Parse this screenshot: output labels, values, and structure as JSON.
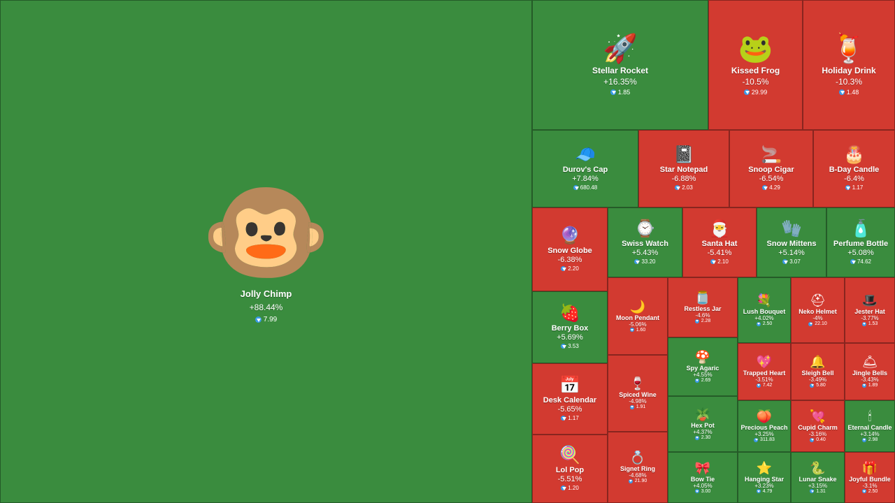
{
  "colors": {
    "gain": "#3a8c3e",
    "loss": "#d23a30",
    "currency": "#3a9ae8"
  },
  "currency_icon": "ton-diamond-icon",
  "items": [
    {
      "name": "Jolly Chimp",
      "change": "+88.44%",
      "price": "7.99",
      "icon": "🐵",
      "trend": "up"
    },
    {
      "name": "Stellar Rocket",
      "change": "+16.35%",
      "price": "1.85",
      "icon": "🚀",
      "trend": "up"
    },
    {
      "name": "Kissed Frog",
      "change": "-10.5%",
      "price": "29.99",
      "icon": "🐸",
      "trend": "down"
    },
    {
      "name": "Holiday Drink",
      "change": "-10.3%",
      "price": "1.48",
      "icon": "🍹",
      "trend": "down"
    },
    {
      "name": "Durov's Cap",
      "change": "+7.84%",
      "price": "680.48",
      "icon": "🧢",
      "trend": "up"
    },
    {
      "name": "Star Notepad",
      "change": "-6.88%",
      "price": "2.03",
      "icon": "📓",
      "trend": "down"
    },
    {
      "name": "Snoop Cigar",
      "change": "-6.54%",
      "price": "4.29",
      "icon": "🚬",
      "trend": "down"
    },
    {
      "name": "B-Day Candle",
      "change": "-6.4%",
      "price": "1.17",
      "icon": "🎂",
      "trend": "down"
    },
    {
      "name": "Snow Globe",
      "change": "-6.38%",
      "price": "2.20",
      "icon": "🔮",
      "trend": "down"
    },
    {
      "name": "Swiss Watch",
      "change": "+5.43%",
      "price": "33.20",
      "icon": "⌚",
      "trend": "up"
    },
    {
      "name": "Santa Hat",
      "change": "-5.41%",
      "price": "2.10",
      "icon": "🎅",
      "trend": "down"
    },
    {
      "name": "Snow Mittens",
      "change": "+5.14%",
      "price": "3.07",
      "icon": "🧤",
      "trend": "up"
    },
    {
      "name": "Perfume Bottle",
      "change": "+5.08%",
      "price": "74.62",
      "icon": "🧴",
      "trend": "up"
    },
    {
      "name": "Berry Box",
      "change": "+5.69%",
      "price": "3.53",
      "icon": "🍓",
      "trend": "up"
    },
    {
      "name": "Moon Pendant",
      "change": "-5.06%",
      "price": "1.60",
      "icon": "🌙",
      "trend": "down"
    },
    {
      "name": "Restless Jar",
      "change": "-4.6%",
      "price": "2.28",
      "icon": "🫙",
      "trend": "down"
    },
    {
      "name": "Lush Bouquet",
      "change": "+4.02%",
      "price": "2.50",
      "icon": "💐",
      "trend": "up"
    },
    {
      "name": "Neko Helmet",
      "change": "-4%",
      "price": "22.10",
      "icon": "⛑",
      "trend": "down"
    },
    {
      "name": "Jester Hat",
      "change": "-3.77%",
      "price": "1.53",
      "icon": "🎩",
      "trend": "down"
    },
    {
      "name": "Spy Agaric",
      "change": "+4.55%",
      "price": "2.69",
      "icon": "🍄",
      "trend": "up"
    },
    {
      "name": "Trapped Heart",
      "change": "-3.51%",
      "price": "7.42",
      "icon": "💖",
      "trend": "down"
    },
    {
      "name": "Sleigh Bell",
      "change": "-3.49%",
      "price": "5.80",
      "icon": "🔔",
      "trend": "down"
    },
    {
      "name": "Jingle Bells",
      "change": "-3.43%",
      "price": "1.89",
      "icon": "🛎",
      "trend": "down"
    },
    {
      "name": "Desk Calendar",
      "change": "-5.65%",
      "price": "1.17",
      "icon": "📅",
      "trend": "down"
    },
    {
      "name": "Spiced Wine",
      "change": "-4.98%",
      "price": "1.91",
      "icon": "🍷",
      "trend": "down"
    },
    {
      "name": "Hex Pot",
      "change": "+4.37%",
      "price": "2.30",
      "icon": "🪴",
      "trend": "up"
    },
    {
      "name": "Precious Peach",
      "change": "+3.25%",
      "price": "311.83",
      "icon": "🍑",
      "trend": "up"
    },
    {
      "name": "Cupid Charm",
      "change": "-3.16%",
      "price": "0.40",
      "icon": "💘",
      "trend": "down"
    },
    {
      "name": "Eternal Candle",
      "change": "+3.14%",
      "price": "2.98",
      "icon": "🕯",
      "trend": "up"
    },
    {
      "name": "Lol Pop",
      "change": "-5.51%",
      "price": "1.20",
      "icon": "🍭",
      "trend": "down"
    },
    {
      "name": "Signet Ring",
      "change": "-4.68%",
      "price": "21.90",
      "icon": "💍",
      "trend": "down"
    },
    {
      "name": "Bow Tie",
      "change": "+4.05%",
      "price": "3.00",
      "icon": "🎀",
      "trend": "up"
    },
    {
      "name": "Hanging Star",
      "change": "+3.23%",
      "price": "4.79",
      "icon": "⭐",
      "trend": "up"
    },
    {
      "name": "Lunar Snake",
      "change": "+3.15%",
      "price": "1.31",
      "icon": "🐍",
      "trend": "up"
    },
    {
      "name": "Joyful Bundle",
      "change": "-3.1%",
      "price": "2.50",
      "icon": "🎁",
      "trend": "down"
    }
  ]
}
